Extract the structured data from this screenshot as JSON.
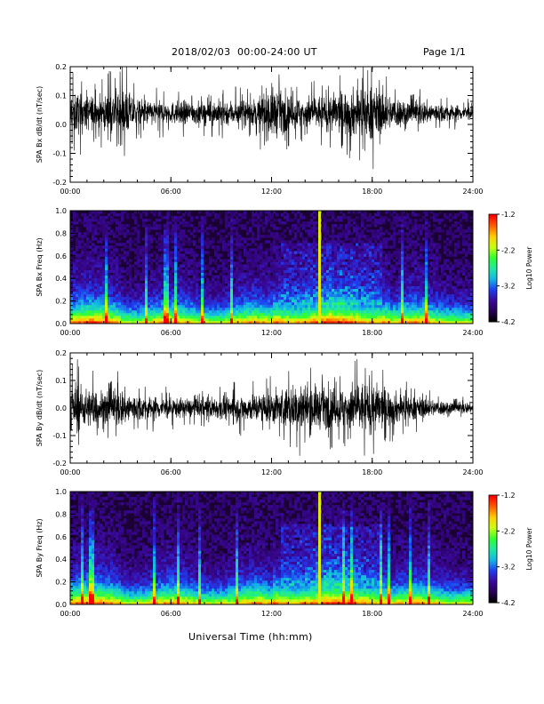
{
  "header": {
    "title": "2018/02/03  00:00-24:00 UT",
    "page": "Page 1/1"
  },
  "footer": {
    "xlabel": "Universal Time (hh:mm)"
  },
  "colors": {
    "trace": "#000000",
    "colormap": [
      "#000000",
      "#2a005a",
      "#3a0aa0",
      "#1f3ff0",
      "#12b8e8",
      "#20e8a0",
      "#30ff30",
      "#c8ff10",
      "#ffd000",
      "#ff6000",
      "#ff0000"
    ]
  },
  "chart_data": [
    {
      "type": "line",
      "ylabel": "SPA Bx dB/dt (nT/sec)",
      "xlim": [
        "00:00",
        "24:00"
      ],
      "ylim": [
        -0.2,
        0.2
      ],
      "x_ticks": [
        "00:00",
        "06:00",
        "12:00",
        "18:00",
        "24:00"
      ],
      "y_ticks": [
        "-0.2",
        "-0.1",
        "0.0",
        "0.1",
        "0.2"
      ],
      "series": [
        {
          "x_hours": [
            0,
            1,
            2,
            3,
            4,
            5,
            6,
            7,
            8,
            9,
            10,
            11,
            12,
            13,
            14,
            15,
            16,
            17,
            18,
            19,
            20,
            21,
            22,
            23,
            24
          ],
          "envelope_halfwidth": [
            0.17,
            0.13,
            0.12,
            0.2,
            0.1,
            0.09,
            0.08,
            0.09,
            0.08,
            0.1,
            0.09,
            0.1,
            0.2,
            0.12,
            0.12,
            0.13,
            0.15,
            0.18,
            0.2,
            0.13,
            0.1,
            0.09,
            0.07,
            0.06,
            0.05
          ],
          "center": 0.04
        }
      ]
    },
    {
      "type": "heatmap",
      "ylabel": "SPA Bx Freq (Hz)",
      "xlim": [
        "00:00",
        "24:00"
      ],
      "ylim": [
        0.0,
        1.0
      ],
      "x_ticks": [
        "00:00",
        "06:00",
        "12:00",
        "18:00",
        "24:00"
      ],
      "y_ticks": [
        "0.0",
        "0.2",
        "0.4",
        "0.6",
        "0.8",
        "1.0"
      ],
      "colorbar_label": "Log10 Power",
      "colorbar_ticks": [
        "-1.2",
        "-2.2",
        "-3.2",
        "-4.2"
      ],
      "zlim": [
        -4.2,
        -1.2
      ],
      "broadband_event_hours": 14.8
    },
    {
      "type": "line",
      "ylabel": "SPA By dB/dt (nT/sec)",
      "xlim": [
        "00:00",
        "24:00"
      ],
      "ylim": [
        -0.2,
        0.2
      ],
      "x_ticks": [
        "00:00",
        "06:00",
        "12:00",
        "18:00",
        "24:00"
      ],
      "y_ticks": [
        "-0.2",
        "-0.1",
        "0.0",
        "0.1",
        "0.2"
      ],
      "series": [
        {
          "x_hours": [
            0,
            1,
            2,
            3,
            4,
            5,
            6,
            7,
            8,
            9,
            10,
            11,
            12,
            13,
            14,
            15,
            16,
            17,
            18,
            19,
            20,
            21,
            22,
            23,
            24
          ],
          "envelope_halfwidth": [
            0.2,
            0.15,
            0.14,
            0.15,
            0.1,
            0.09,
            0.08,
            0.07,
            0.08,
            0.09,
            0.1,
            0.11,
            0.13,
            0.16,
            0.2,
            0.15,
            0.15,
            0.2,
            0.2,
            0.14,
            0.1,
            0.08,
            0.06,
            0.05,
            0.04
          ],
          "center": 0.0
        }
      ]
    },
    {
      "type": "heatmap",
      "ylabel": "SPA By Freq (Hz)",
      "xlim": [
        "00:00",
        "24:00"
      ],
      "ylim": [
        0.0,
        1.0
      ],
      "x_ticks": [
        "00:00",
        "06:00",
        "12:00",
        "18:00",
        "24:00"
      ],
      "y_ticks": [
        "0.0",
        "0.2",
        "0.4",
        "0.6",
        "0.8",
        "1.0"
      ],
      "colorbar_label": "Log10 Power",
      "colorbar_ticks": [
        "-1.2",
        "-2.2",
        "-3.2",
        "-4.2"
      ],
      "zlim": [
        -4.2,
        -1.2
      ],
      "broadband_event_hours": 14.8
    }
  ]
}
